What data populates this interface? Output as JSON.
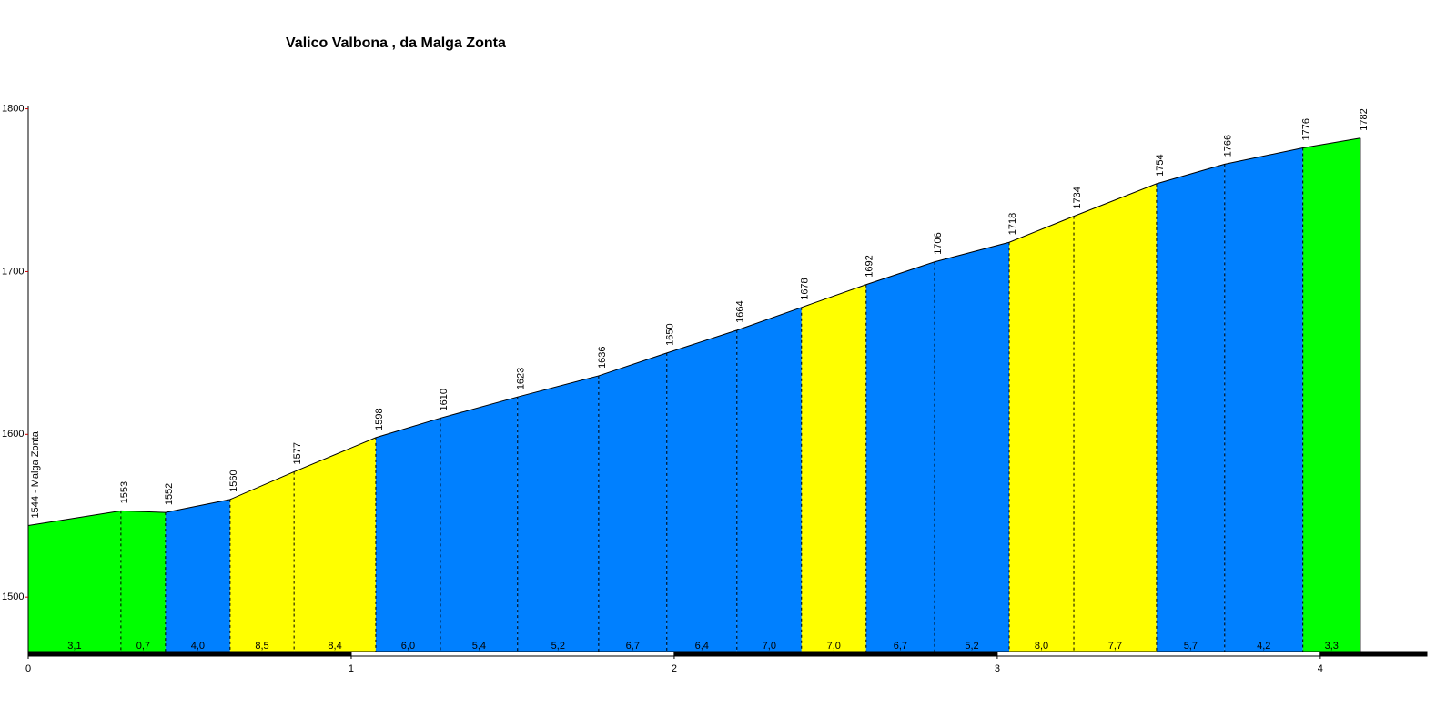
{
  "chart_data": {
    "type": "elevation-profile",
    "title": "Valico Valbona , da Malga Zonta",
    "x": [
      0,
      0.287,
      0.425,
      0.625,
      0.823,
      1.076,
      1.276,
      1.515,
      1.766,
      1.977,
      2.194,
      2.394,
      2.594,
      2.806,
      3.037,
      3.237,
      3.493,
      3.704,
      3.946,
      4.124
    ],
    "elevation": {
      "values": [
        1544,
        1553,
        1552,
        1560,
        1577,
        1598,
        1610,
        1623,
        1636,
        1650,
        1664,
        1678,
        1692,
        1706,
        1718,
        1734,
        1754,
        1766,
        1776,
        1782
      ],
      "value_labels": [
        "1544 - Malga Zonta",
        "1553",
        "1552",
        "1560",
        "1577",
        "1598",
        "1610",
        "1623",
        "1636",
        "1650",
        "1664",
        "1678",
        "1692",
        "1706",
        "1718",
        "1734",
        "1754",
        "1766",
        "1776",
        "1782"
      ]
    },
    "gradient": {
      "values": [
        3.1,
        0.7,
        4.0,
        8.5,
        8.4,
        6.0,
        5.4,
        5.2,
        6.7,
        6.4,
        7.0,
        7.0,
        6.7,
        5.2,
        8.0,
        7.7,
        5.7,
        4.2,
        3.3
      ],
      "value_labels": [
        "3,1",
        "0,7",
        "4,0",
        "8,5",
        "8,4",
        "6,0",
        "5,4",
        "5,2",
        "6,7",
        "6,4",
        "7,0",
        "7,0",
        "6,7",
        "5,2",
        "8,0",
        "7,7",
        "5,7",
        "4,2",
        "3,3"
      ],
      "colors": [
        "#00ff00",
        "#00ff00",
        "#0080ff",
        "#ffff00",
        "#ffff00",
        "#0080ff",
        "#0080ff",
        "#0080ff",
        "#0080ff",
        "#0080ff",
        "#0080ff",
        "#ffff00",
        "#0080ff",
        "#0080ff",
        "#ffff00",
        "#ffff00",
        "#0080ff",
        "#0080ff",
        "#00ff00"
      ]
    },
    "xlim": [
      0,
      4.33
    ],
    "xticks": [
      0,
      1,
      2,
      3,
      4
    ],
    "ylim": [
      1466,
      1802
    ],
    "yticks": [
      1500,
      1600,
      1700,
      1800
    ]
  }
}
